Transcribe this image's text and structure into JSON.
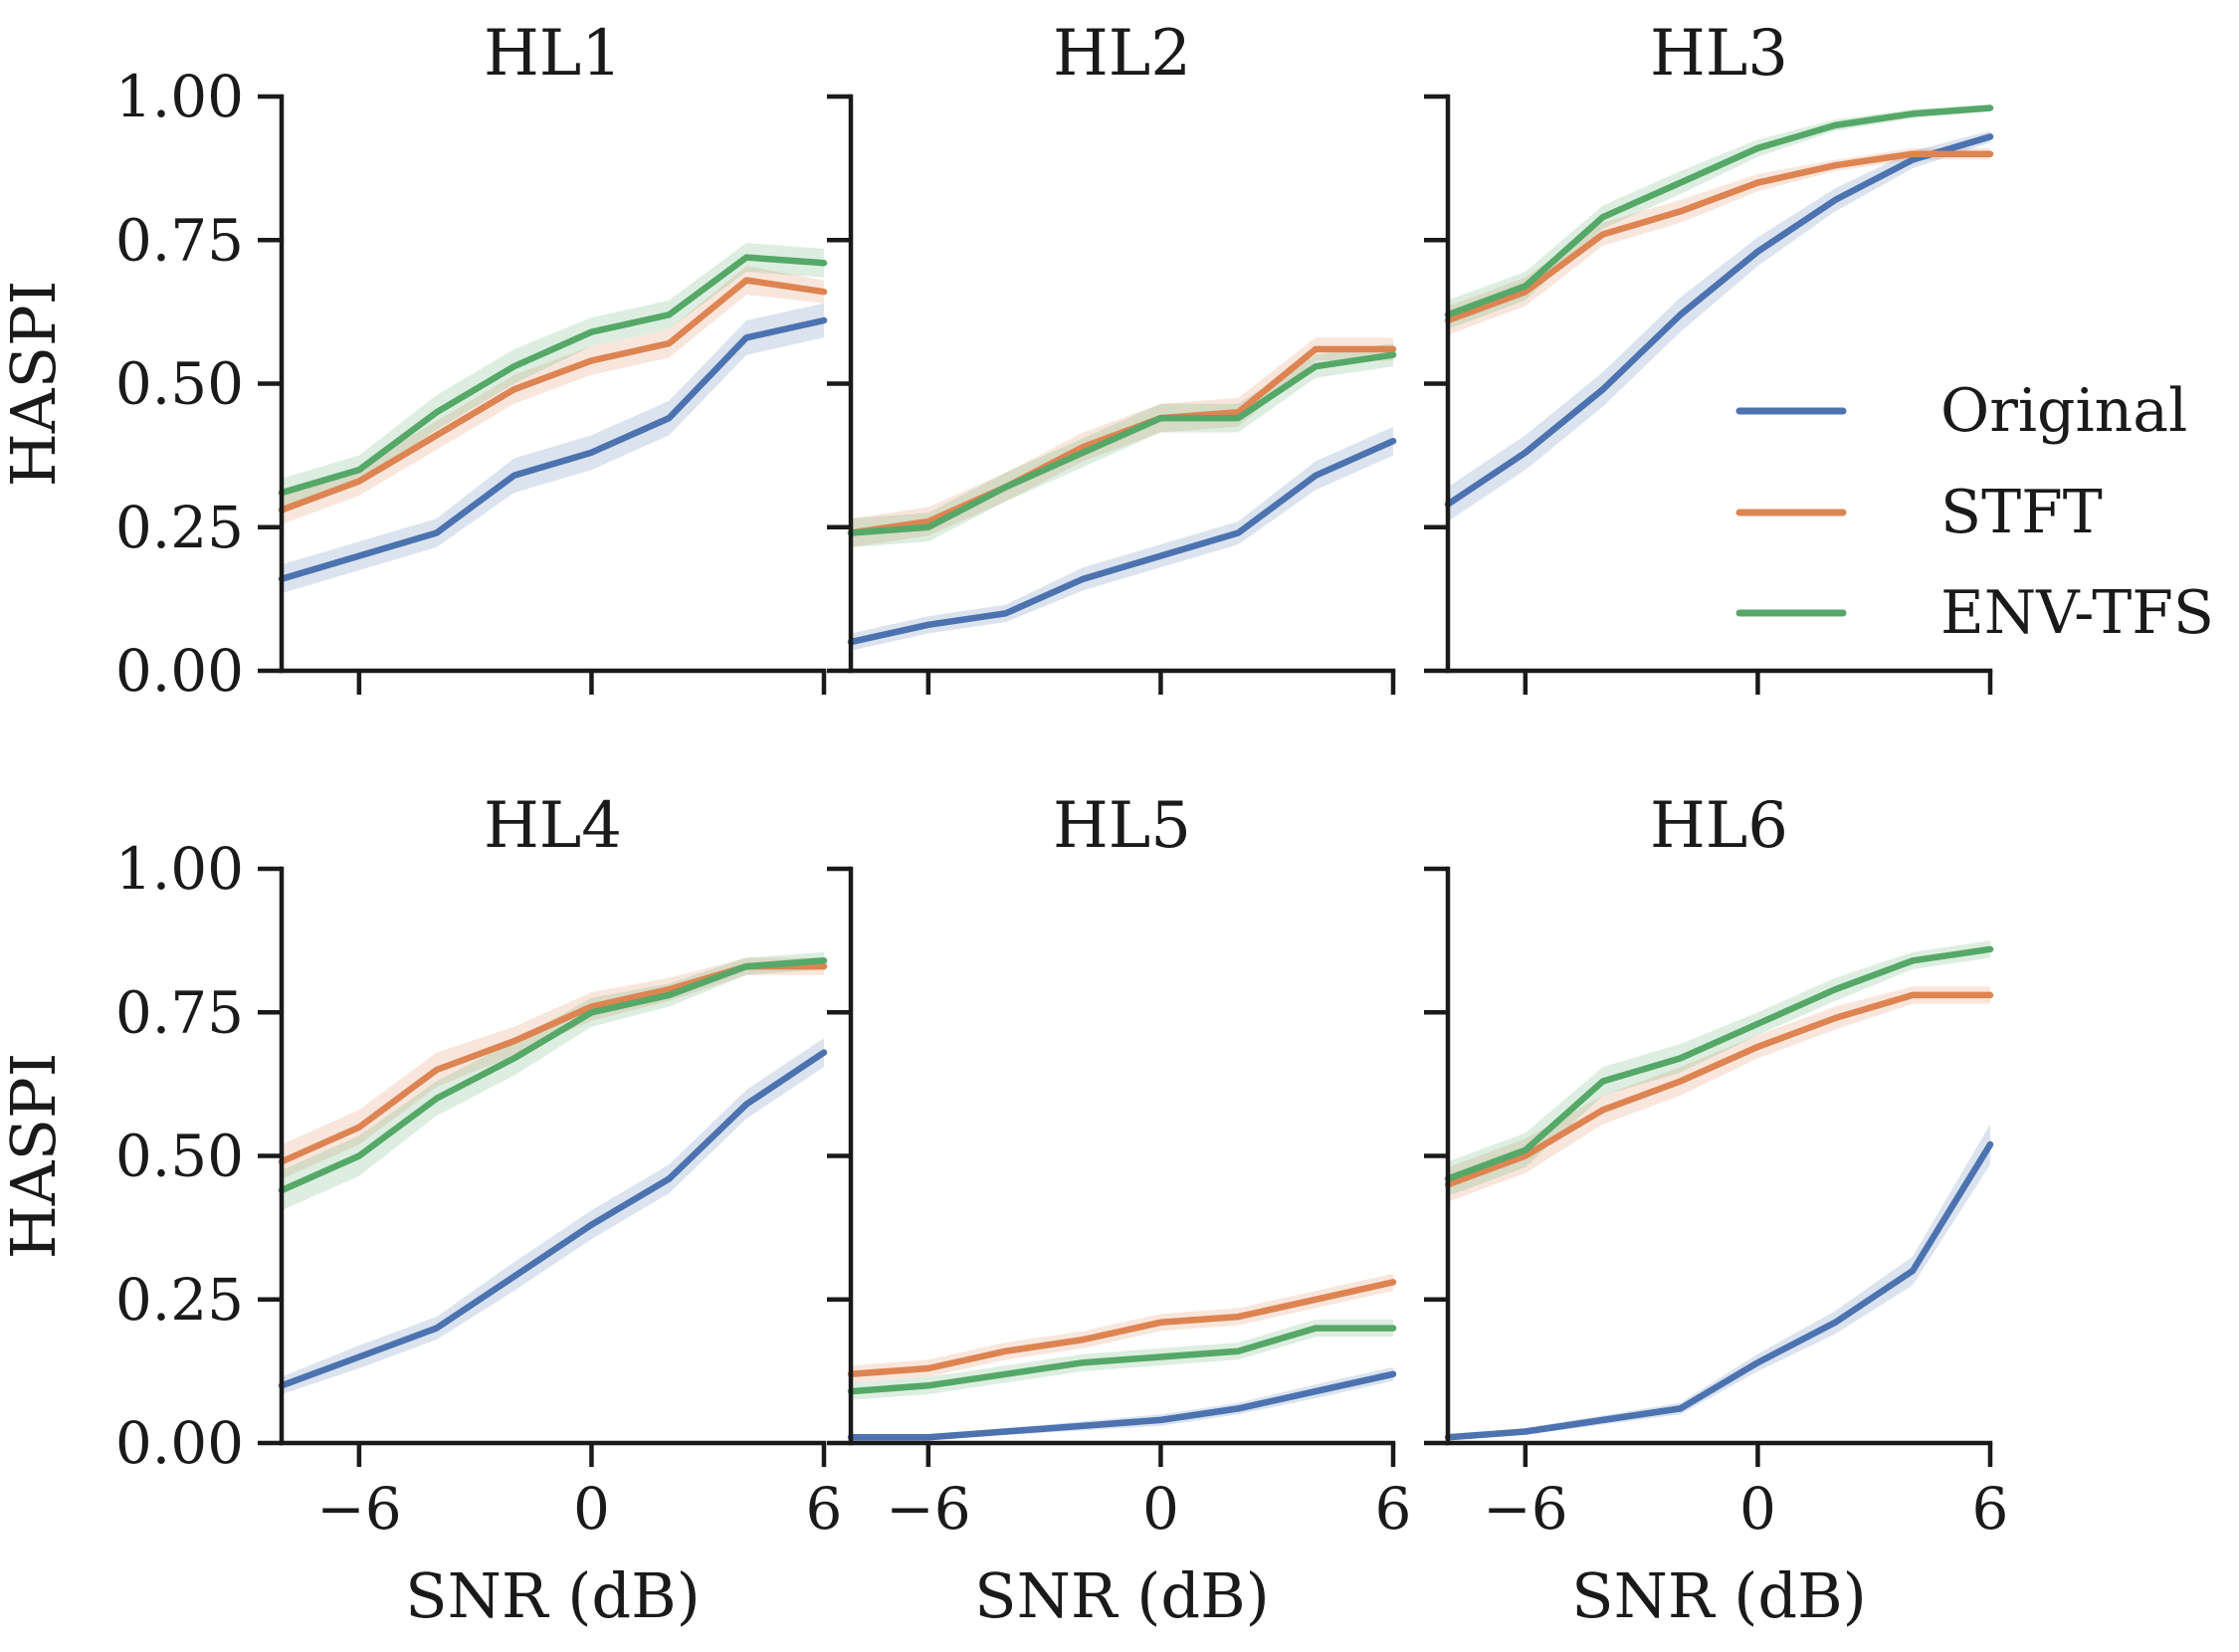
{
  "chart_data": {
    "type": "line",
    "x": [
      -8,
      -6,
      -4,
      -2,
      0,
      2,
      4,
      6
    ],
    "xlim": [
      -8,
      6
    ],
    "ylim": [
      0,
      1
    ],
    "xticks": [
      -6,
      0,
      6
    ],
    "xtick_labels": [
      "−6",
      "0",
      "6"
    ],
    "yticks": [
      0,
      0.25,
      0.5,
      0.75,
      1.0
    ],
    "ytick_labels": [
      "0.00",
      "0.25",
      "0.50",
      "0.75",
      "1.00"
    ],
    "xlabel": "SNR (dB)",
    "ylabel": "HASPI",
    "legend": {
      "placement": "right",
      "entries": [
        "Original",
        "STFT",
        "ENV-TFS"
      ]
    },
    "colors": {
      "Original": "#4c72b0",
      "STFT": "#dd8452",
      "ENV-TFS": "#55a868"
    },
    "panels": [
      {
        "title": "HL1",
        "series": [
          {
            "name": "Original",
            "values": [
              0.16,
              0.2,
              0.24,
              0.34,
              0.38,
              0.44,
              0.58,
              0.61
            ],
            "ci": [
              0.025,
              0.025,
              0.025,
              0.03,
              0.03,
              0.03,
              0.03,
              0.03
            ]
          },
          {
            "name": "STFT",
            "values": [
              0.28,
              0.33,
              0.41,
              0.49,
              0.54,
              0.57,
              0.68,
              0.66
            ],
            "ci": [
              0.025,
              0.025,
              0.025,
              0.025,
              0.025,
              0.025,
              0.025,
              0.02
            ]
          },
          {
            "name": "ENV-TFS",
            "values": [
              0.31,
              0.35,
              0.45,
              0.53,
              0.59,
              0.62,
              0.72,
              0.71
            ],
            "ci": [
              0.025,
              0.025,
              0.03,
              0.03,
              0.025,
              0.025,
              0.025,
              0.025
            ]
          }
        ]
      },
      {
        "title": "HL2",
        "series": [
          {
            "name": "Original",
            "values": [
              0.05,
              0.08,
              0.1,
              0.16,
              0.2,
              0.24,
              0.34,
              0.4
            ],
            "ci": [
              0.015,
              0.015,
              0.015,
              0.02,
              0.02,
              0.02,
              0.025,
              0.025
            ]
          },
          {
            "name": "STFT",
            "values": [
              0.24,
              0.26,
              0.32,
              0.39,
              0.44,
              0.45,
              0.56,
              0.56
            ],
            "ci": [
              0.025,
              0.025,
              0.025,
              0.025,
              0.025,
              0.025,
              0.02,
              0.02
            ]
          },
          {
            "name": "ENV-TFS",
            "values": [
              0.24,
              0.25,
              0.32,
              0.38,
              0.44,
              0.44,
              0.53,
              0.55
            ],
            "ci": [
              0.025,
              0.025,
              0.025,
              0.025,
              0.025,
              0.025,
              0.02,
              0.02
            ]
          }
        ]
      },
      {
        "title": "HL3",
        "series": [
          {
            "name": "Original",
            "values": [
              0.29,
              0.38,
              0.49,
              0.62,
              0.73,
              0.82,
              0.89,
              0.93
            ],
            "ci": [
              0.03,
              0.03,
              0.03,
              0.03,
              0.025,
              0.02,
              0.015,
              0.01
            ]
          },
          {
            "name": "STFT",
            "values": [
              0.61,
              0.66,
              0.76,
              0.8,
              0.85,
              0.88,
              0.9,
              0.9
            ],
            "ci": [
              0.025,
              0.025,
              0.02,
              0.02,
              0.015,
              0.01,
              0.01,
              0.01
            ]
          },
          {
            "name": "ENV-TFS",
            "values": [
              0.62,
              0.67,
              0.79,
              0.85,
              0.91,
              0.95,
              0.97,
              0.98
            ],
            "ci": [
              0.025,
              0.025,
              0.02,
              0.02,
              0.015,
              0.01,
              0.008,
              0.006
            ]
          }
        ]
      },
      {
        "title": "HL4",
        "series": [
          {
            "name": "Original",
            "values": [
              0.1,
              0.15,
              0.2,
              0.29,
              0.38,
              0.46,
              0.59,
              0.68
            ],
            "ci": [
              0.015,
              0.02,
              0.02,
              0.025,
              0.025,
              0.025,
              0.025,
              0.025
            ]
          },
          {
            "name": "STFT",
            "values": [
              0.49,
              0.55,
              0.65,
              0.7,
              0.76,
              0.79,
              0.83,
              0.83
            ],
            "ci": [
              0.03,
              0.03,
              0.03,
              0.025,
              0.025,
              0.02,
              0.015,
              0.015
            ]
          },
          {
            "name": "ENV-TFS",
            "values": [
              0.44,
              0.5,
              0.6,
              0.67,
              0.75,
              0.78,
              0.83,
              0.84
            ],
            "ci": [
              0.035,
              0.035,
              0.03,
              0.03,
              0.025,
              0.02,
              0.015,
              0.015
            ]
          }
        ]
      },
      {
        "title": "HL5",
        "series": [
          {
            "name": "Original",
            "values": [
              0.01,
              0.01,
              0.02,
              0.03,
              0.04,
              0.06,
              0.09,
              0.12
            ],
            "ci": [
              0.005,
              0.005,
              0.006,
              0.008,
              0.01,
              0.01,
              0.012,
              0.012
            ]
          },
          {
            "name": "STFT",
            "values": [
              0.12,
              0.13,
              0.16,
              0.18,
              0.21,
              0.22,
              0.25,
              0.28
            ],
            "ci": [
              0.015,
              0.015,
              0.015,
              0.015,
              0.015,
              0.015,
              0.015,
              0.015
            ]
          },
          {
            "name": "ENV-TFS",
            "values": [
              0.09,
              0.1,
              0.12,
              0.14,
              0.15,
              0.16,
              0.2,
              0.2
            ],
            "ci": [
              0.015,
              0.015,
              0.015,
              0.015,
              0.015,
              0.015,
              0.015,
              0.015
            ]
          }
        ]
      },
      {
        "title": "HL6",
        "series": [
          {
            "name": "Original",
            "values": [
              0.01,
              0.02,
              0.04,
              0.06,
              0.14,
              0.21,
              0.3,
              0.52
            ],
            "ci": [
              0.005,
              0.006,
              0.008,
              0.01,
              0.015,
              0.02,
              0.025,
              0.035
            ]
          },
          {
            "name": "STFT",
            "values": [
              0.45,
              0.5,
              0.58,
              0.63,
              0.69,
              0.74,
              0.78,
              0.78
            ],
            "ci": [
              0.03,
              0.03,
              0.025,
              0.025,
              0.02,
              0.02,
              0.015,
              0.015
            ]
          },
          {
            "name": "ENV-TFS",
            "values": [
              0.46,
              0.51,
              0.63,
              0.67,
              0.73,
              0.79,
              0.84,
              0.86
            ],
            "ci": [
              0.03,
              0.03,
              0.025,
              0.025,
              0.02,
              0.02,
              0.015,
              0.015
            ]
          }
        ]
      }
    ]
  }
}
